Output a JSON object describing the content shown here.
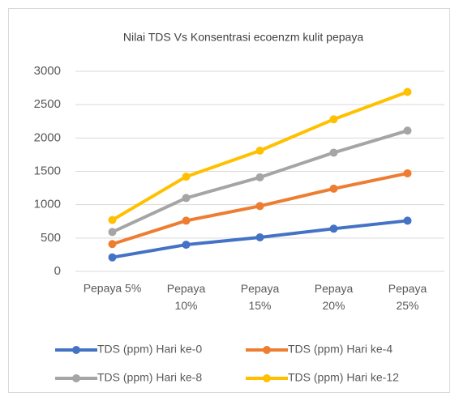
{
  "chart_data": {
    "type": "line",
    "title": "Nilai TDS Vs Konsentrasi ecoenzm kulit pepaya",
    "categories": [
      "Pepaya 5%",
      "Pepaya 10%",
      "Pepaya 15%",
      "Pepaya 20%",
      "Pepaya 25%"
    ],
    "series": [
      {
        "name": "TDS (ppm) Hari ke-0",
        "color": "#4472c4",
        "values": [
          210,
          400,
          510,
          640,
          760
        ]
      },
      {
        "name": "TDS (ppm) Hari ke-4",
        "color": "#ed7d31",
        "values": [
          410,
          760,
          980,
          1240,
          1470
        ]
      },
      {
        "name": "TDS (ppm) Hari ke-8",
        "color": "#a5a5a5",
        "values": [
          590,
          1100,
          1410,
          1780,
          2110
        ]
      },
      {
        "name": "TDS (ppm) Hari ke-12",
        "color": "#ffc000",
        "values": [
          770,
          1420,
          1810,
          2280,
          2690
        ]
      }
    ],
    "ylim": [
      0,
      3000
    ],
    "yticks": [
      0,
      500,
      1000,
      1500,
      2000,
      2500,
      3000
    ],
    "grid": true,
    "legend": "bottom"
  }
}
